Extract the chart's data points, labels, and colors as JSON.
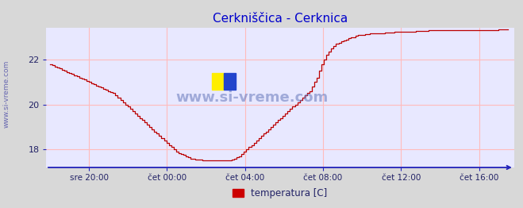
{
  "title_display": "Cerkniščica - Cerknica",
  "ylabel_text": "www.si-vreme.com",
  "watermark": "www.si-vreme.com",
  "legend_label": "temperatura [C]",
  "legend_color": "#cc0000",
  "line_color": "#bb0000",
  "bg_color": "#d8d8d8",
  "plot_bg": "#e8e8ff",
  "grid_color": "#ffbbbb",
  "axis_color": "#2222bb",
  "title_color": "#0000cc",
  "tick_color": "#222266",
  "ylim": [
    17.2,
    23.4
  ],
  "yticks": [
    18,
    20,
    22
  ],
  "xtick_labels": [
    "sre 20:00",
    "čet 00:00",
    "čet 04:00",
    "čet 08:00",
    "čet 12:00",
    "čet 16:00"
  ],
  "figsize": [
    6.59,
    2.62
  ],
  "dpi": 100,
  "temperature_data": [
    21.8,
    21.75,
    21.7,
    21.65,
    21.6,
    21.55,
    21.5,
    21.45,
    21.4,
    21.35,
    21.3,
    21.25,
    21.2,
    21.15,
    21.1,
    21.05,
    21.0,
    20.95,
    20.9,
    20.85,
    20.8,
    20.75,
    20.7,
    20.65,
    20.6,
    20.55,
    20.5,
    20.4,
    20.3,
    20.2,
    20.1,
    20.0,
    19.9,
    19.8,
    19.7,
    19.6,
    19.5,
    19.4,
    19.3,
    19.2,
    19.1,
    19.0,
    18.9,
    18.8,
    18.7,
    18.6,
    18.5,
    18.4,
    18.3,
    18.2,
    18.1,
    18.0,
    17.9,
    17.85,
    17.8,
    17.75,
    17.7,
    17.65,
    17.6,
    17.58,
    17.56,
    17.55,
    17.54,
    17.53,
    17.52,
    17.51,
    17.5,
    17.5,
    17.5,
    17.5,
    17.5,
    17.5,
    17.5,
    17.5,
    17.52,
    17.55,
    17.6,
    17.65,
    17.7,
    17.8,
    17.9,
    18.0,
    18.1,
    18.2,
    18.3,
    18.4,
    18.5,
    18.6,
    18.7,
    18.8,
    18.9,
    19.0,
    19.1,
    19.2,
    19.3,
    19.4,
    19.5,
    19.6,
    19.7,
    19.8,
    19.9,
    20.0,
    20.1,
    20.2,
    20.3,
    20.4,
    20.5,
    20.6,
    20.8,
    21.0,
    21.2,
    21.5,
    21.8,
    22.0,
    22.2,
    22.35,
    22.5,
    22.6,
    22.7,
    22.75,
    22.8,
    22.85,
    22.9,
    22.95,
    23.0,
    23.0,
    23.05,
    23.1,
    23.1,
    23.1,
    23.12,
    23.13,
    23.15,
    23.15,
    23.15,
    23.15,
    23.15,
    23.18,
    23.2,
    23.2,
    23.2,
    23.2,
    23.22,
    23.22,
    23.22,
    23.25,
    23.25,
    23.25,
    23.25,
    23.25,
    23.25,
    23.28,
    23.28,
    23.28,
    23.28,
    23.28,
    23.3,
    23.3,
    23.3,
    23.3,
    23.3,
    23.3,
    23.3,
    23.3,
    23.3,
    23.3,
    23.3,
    23.3,
    23.3,
    23.3,
    23.3,
    23.3,
    23.3,
    23.3,
    23.3,
    23.32,
    23.32,
    23.32,
    23.32,
    23.32,
    23.32,
    23.32,
    23.32,
    23.32,
    23.32,
    23.35,
    23.35,
    23.35,
    23.35,
    23.35
  ]
}
